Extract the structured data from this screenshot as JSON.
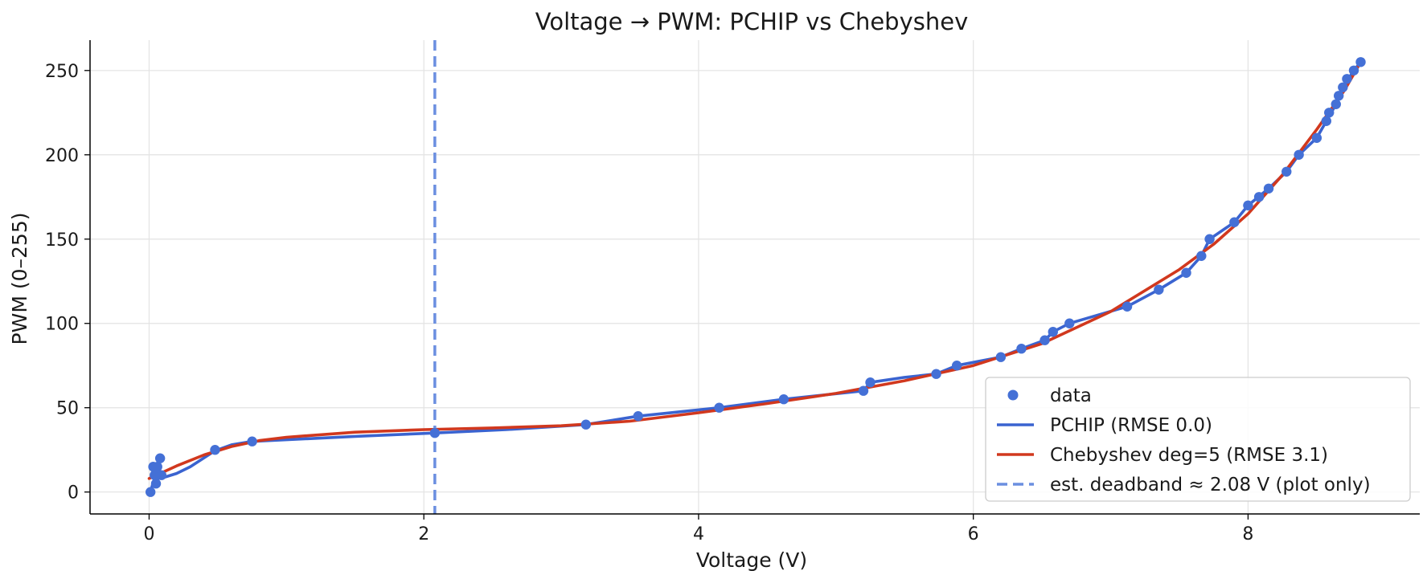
{
  "chart_data": {
    "type": "line",
    "title": "Voltage → PWM: PCHIP vs Chebyshev",
    "xlabel": "Voltage (V)",
    "ylabel": "PWM (0–255)",
    "xlim": [
      -0.43,
      9.25
    ],
    "ylim": [
      -13,
      268
    ],
    "xticks": [
      0,
      2,
      4,
      6,
      8
    ],
    "yticks": [
      0,
      50,
      100,
      150,
      200,
      250
    ],
    "grid": true,
    "legend_position": "lower-right",
    "colors": {
      "data": "#4470d6",
      "pchip": "#3a63d0",
      "chebyshev": "#d1381e",
      "deadband": "#6b8fe0"
    },
    "series": [
      {
        "name": "data",
        "kind": "scatter",
        "points": [
          [
            0.01,
            0
          ],
          [
            0.03,
            15
          ],
          [
            0.04,
            10
          ],
          [
            0.05,
            5
          ],
          [
            0.06,
            15
          ],
          [
            0.08,
            20
          ],
          [
            0.09,
            10
          ],
          [
            0.48,
            25
          ],
          [
            0.75,
            30
          ],
          [
            2.08,
            35
          ],
          [
            3.18,
            40
          ],
          [
            3.56,
            45
          ],
          [
            4.15,
            50
          ],
          [
            4.62,
            55
          ],
          [
            5.2,
            60
          ],
          [
            5.25,
            65
          ],
          [
            5.73,
            70
          ],
          [
            5.88,
            75
          ],
          [
            6.2,
            80
          ],
          [
            6.35,
            85
          ],
          [
            6.52,
            90
          ],
          [
            6.58,
            95
          ],
          [
            6.7,
            100
          ],
          [
            7.12,
            110
          ],
          [
            7.35,
            120
          ],
          [
            7.55,
            130
          ],
          [
            7.66,
            140
          ],
          [
            7.72,
            150
          ],
          [
            7.9,
            160
          ],
          [
            8.0,
            170
          ],
          [
            8.08,
            175
          ],
          [
            8.15,
            180
          ],
          [
            8.28,
            190
          ],
          [
            8.37,
            200
          ],
          [
            8.5,
            210
          ],
          [
            8.57,
            220
          ],
          [
            8.59,
            225
          ],
          [
            8.64,
            230
          ],
          [
            8.66,
            235
          ],
          [
            8.69,
            240
          ],
          [
            8.72,
            245
          ],
          [
            8.77,
            250
          ],
          [
            8.82,
            255
          ]
        ]
      },
      {
        "name": "PCHIP (RMSE 0.0)",
        "kind": "line",
        "points": [
          [
            0.01,
            0
          ],
          [
            0.03,
            6
          ],
          [
            0.05,
            8
          ],
          [
            0.1,
            8.5
          ],
          [
            0.2,
            11
          ],
          [
            0.3,
            15
          ],
          [
            0.48,
            24.5
          ],
          [
            0.6,
            28
          ],
          [
            0.75,
            30
          ],
          [
            1.0,
            31
          ],
          [
            1.5,
            33
          ],
          [
            2.08,
            35
          ],
          [
            2.6,
            37
          ],
          [
            3.18,
            40
          ],
          [
            3.56,
            45
          ],
          [
            4.15,
            50
          ],
          [
            4.62,
            55
          ],
          [
            5.2,
            60
          ],
          [
            5.25,
            65
          ],
          [
            5.5,
            68
          ],
          [
            5.73,
            70
          ],
          [
            5.88,
            75
          ],
          [
            6.2,
            80
          ],
          [
            6.35,
            85
          ],
          [
            6.52,
            90
          ],
          [
            6.58,
            95
          ],
          [
            6.7,
            100
          ],
          [
            7.12,
            110
          ],
          [
            7.35,
            120
          ],
          [
            7.55,
            130
          ],
          [
            7.66,
            140
          ],
          [
            7.72,
            150
          ],
          [
            7.9,
            160
          ],
          [
            8.0,
            170
          ],
          [
            8.15,
            180
          ],
          [
            8.28,
            190
          ],
          [
            8.37,
            200
          ],
          [
            8.5,
            210
          ],
          [
            8.57,
            220
          ],
          [
            8.64,
            230
          ],
          [
            8.69,
            240
          ],
          [
            8.77,
            250
          ],
          [
            8.82,
            255
          ]
        ]
      },
      {
        "name": "Chebyshev deg=5 (RMSE 3.1)",
        "kind": "line",
        "points": [
          [
            0.0,
            8
          ],
          [
            0.2,
            15.5
          ],
          [
            0.4,
            22
          ],
          [
            0.6,
            27
          ],
          [
            0.8,
            30.5
          ],
          [
            1.0,
            32.5
          ],
          [
            1.5,
            35.5
          ],
          [
            2.0,
            37
          ],
          [
            2.5,
            38
          ],
          [
            3.0,
            39.3
          ],
          [
            3.5,
            42
          ],
          [
            4.0,
            47
          ],
          [
            4.5,
            52.5
          ],
          [
            5.0,
            58.5
          ],
          [
            5.5,
            66
          ],
          [
            6.0,
            75
          ],
          [
            6.5,
            88
          ],
          [
            7.0,
            107
          ],
          [
            7.5,
            132
          ],
          [
            7.75,
            147
          ],
          [
            8.0,
            165
          ],
          [
            8.25,
            188
          ],
          [
            8.5,
            215
          ],
          [
            8.7,
            238
          ],
          [
            8.82,
            255
          ]
        ]
      },
      {
        "name": "est. deadband ≈ 2.08 V (plot only)",
        "kind": "vline",
        "x": 2.08
      }
    ]
  }
}
